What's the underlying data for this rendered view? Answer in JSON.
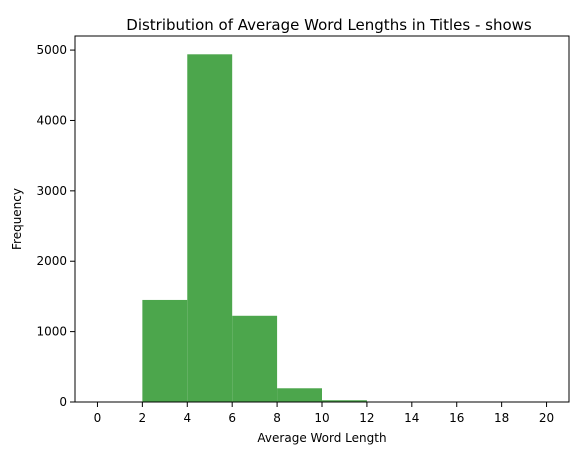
{
  "chart_data": {
    "type": "bar",
    "title": "Distribution of Average Word Lengths in Titles - shows",
    "xlabel": "Average Word Length",
    "ylabel": "Frequency",
    "bins": [
      {
        "start": 0,
        "end": 2,
        "value": 0
      },
      {
        "start": 2,
        "end": 4,
        "value": 1450
      },
      {
        "start": 4,
        "end": 6,
        "value": 4940
      },
      {
        "start": 6,
        "end": 8,
        "value": 1225
      },
      {
        "start": 8,
        "end": 10,
        "value": 195
      },
      {
        "start": 10,
        "end": 12,
        "value": 25
      },
      {
        "start": 12,
        "end": 14,
        "value": 4
      },
      {
        "start": 14,
        "end": 16,
        "value": 1
      },
      {
        "start": 16,
        "end": 18,
        "value": 0
      },
      {
        "start": 18,
        "end": 20,
        "value": 1
      }
    ],
    "xlim": [
      -1,
      21
    ],
    "ylim": [
      0,
      5200
    ],
    "xticks": [
      "0",
      "2",
      "4",
      "6",
      "8",
      "10",
      "12",
      "14",
      "16",
      "18",
      "20"
    ],
    "yticks": [
      "0",
      "1000",
      "2000",
      "3000",
      "4000",
      "5000"
    ],
    "bar_color": "#4ca64c",
    "grid": false
  }
}
